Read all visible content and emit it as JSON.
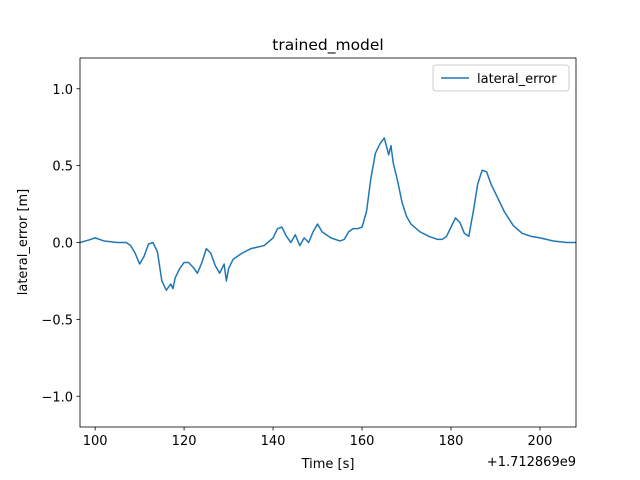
{
  "chart_data": {
    "type": "line",
    "title": "trained_model",
    "x_label": "Time [s]",
    "y_label": "lateral_error [m]",
    "x_offset_label": "+1.712869e9",
    "x": [
      96.6,
      99,
      100,
      102,
      105,
      107,
      108,
      109,
      110,
      111,
      112,
      113,
      114,
      115,
      116,
      117,
      117.5,
      118,
      119,
      120,
      121,
      122,
      123,
      124,
      125,
      126,
      127,
      128,
      129,
      129.5,
      130,
      131,
      133,
      135,
      138,
      140,
      141,
      142,
      143,
      144,
      145,
      146,
      147,
      148,
      149,
      150,
      151,
      153,
      155,
      156,
      157,
      158,
      159,
      160,
      161,
      162,
      163,
      164,
      165,
      166,
      166.5,
      167,
      168,
      169,
      170,
      171,
      173,
      175,
      177,
      178,
      179,
      180,
      181,
      182,
      183,
      184,
      185,
      186,
      187,
      188,
      189,
      190,
      192,
      194,
      196,
      198,
      200,
      203,
      206,
      208.1
    ],
    "series": [
      {
        "name": "lateral_error",
        "color": "#1f77b4",
        "values": [
          0.0,
          0.02,
          0.03,
          0.01,
          0.0,
          0.0,
          -0.02,
          -0.07,
          -0.14,
          -0.09,
          -0.01,
          0.0,
          -0.06,
          -0.25,
          -0.31,
          -0.27,
          -0.3,
          -0.23,
          -0.17,
          -0.13,
          -0.13,
          -0.16,
          -0.2,
          -0.13,
          -0.04,
          -0.07,
          -0.15,
          -0.2,
          -0.14,
          -0.25,
          -0.17,
          -0.11,
          -0.07,
          -0.04,
          -0.02,
          0.03,
          0.09,
          0.1,
          0.04,
          0.0,
          0.05,
          -0.02,
          0.03,
          0.0,
          0.07,
          0.12,
          0.07,
          0.03,
          0.01,
          0.02,
          0.07,
          0.09,
          0.09,
          0.1,
          0.2,
          0.42,
          0.58,
          0.64,
          0.68,
          0.57,
          0.63,
          0.52,
          0.4,
          0.26,
          0.17,
          0.12,
          0.07,
          0.04,
          0.02,
          0.02,
          0.04,
          0.1,
          0.16,
          0.13,
          0.06,
          0.04,
          0.2,
          0.38,
          0.47,
          0.46,
          0.38,
          0.32,
          0.2,
          0.11,
          0.06,
          0.04,
          0.03,
          0.01,
          0.0,
          0.0
        ]
      }
    ],
    "xlim": [
      96.6,
      208.1
    ],
    "xticks": [
      100,
      120,
      140,
      160,
      180,
      200
    ],
    "ylim": [
      -1.2,
      1.2
    ],
    "yticks": [
      {
        "value": -1,
        "label": "−1.0"
      },
      {
        "value": -0.5,
        "label": "−0.5"
      },
      {
        "value": 0,
        "label": "0.0"
      },
      0.5,
      {
        "value": 1,
        "label": "1.0"
      }
    ],
    "legend": "upper right",
    "grid": false
  }
}
